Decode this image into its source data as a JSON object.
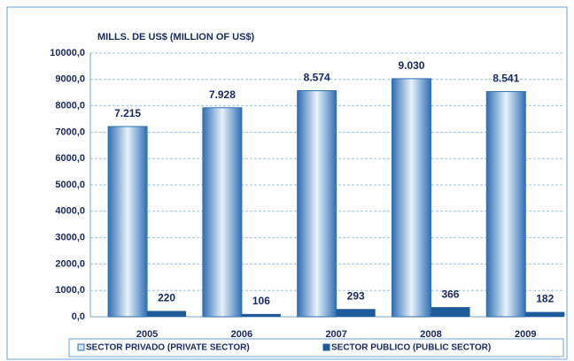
{
  "chart_data": {
    "type": "bar",
    "ylabel": "MILLS. DE US$  (MILLION OF US$)",
    "categories": [
      "2005",
      "2006",
      "2007",
      "2008",
      "2009"
    ],
    "series": [
      {
        "name": "SECTOR PRIVADO (PRIVATE SECTOR)",
        "color": "#2f6fb3",
        "values": [
          7215,
          7928,
          8574,
          9030,
          8541
        ],
        "value_labels": [
          "7.215",
          "7.928",
          "8.574",
          "9.030",
          "8.541"
        ]
      },
      {
        "name": "SECTOR PUBLICO (PUBLIC SECTOR)",
        "color": "#1f5a9a",
        "values": [
          220,
          106,
          293,
          366,
          182
        ]
      }
    ],
    "ylim": [
      0,
      10000
    ],
    "yticks": [
      {
        "value": 0,
        "label": "0,0"
      },
      {
        "value": 1000,
        "label": "1000,0"
      },
      {
        "value": 2000,
        "label": "2000,0"
      },
      {
        "value": 3000,
        "label": "3000,0"
      },
      {
        "value": 4000,
        "label": "4000,0"
      },
      {
        "value": 5000,
        "label": "5000,0"
      },
      {
        "value": 6000,
        "label": "6000,0"
      },
      {
        "value": 7000,
        "label": "7000,0"
      },
      {
        "value": 8000,
        "label": "8000,0"
      },
      {
        "value": 9000,
        "label": "9000,0"
      },
      {
        "value": 10000,
        "label": "10000,0"
      }
    ],
    "grid": true
  }
}
